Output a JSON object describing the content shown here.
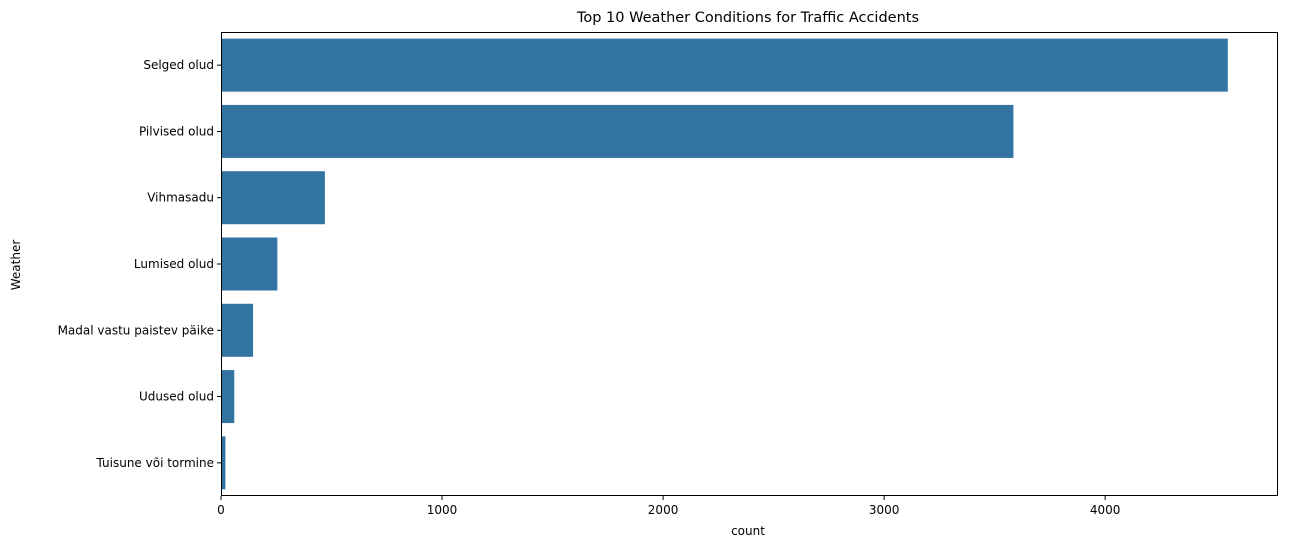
{
  "chart_data": {
    "type": "bar",
    "orientation": "horizontal",
    "title": "Top 10 Weather Conditions for Traffic Accidents",
    "xlabel": "count",
    "ylabel": "Weather",
    "categories": [
      "Selged olud",
      "Pilvised olud",
      "Vihmasadu",
      "Lumised olud",
      "Madal vastu paistev päike",
      "Udused olud",
      "Tuisune või tormine"
    ],
    "values": [
      4555,
      3585,
      470,
      255,
      145,
      60,
      20
    ],
    "xlim": [
      0,
      4782
    ],
    "xticks": [
      0,
      1000,
      2000,
      3000,
      4000
    ],
    "xtick_labels": [
      "0",
      "1000",
      "2000",
      "3000",
      "4000"
    ],
    "bar_color": "#3274a1",
    "grid": false,
    "legend": "none"
  }
}
